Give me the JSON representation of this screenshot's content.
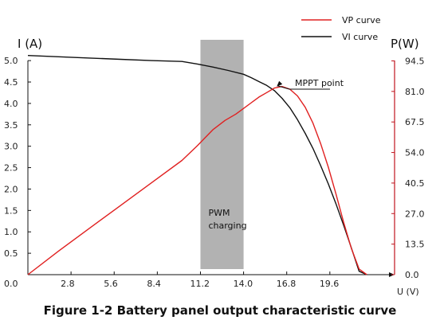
{
  "caption": "Figure 1-2 Battery panel output characteristic curve",
  "chart_data": {
    "type": "line",
    "xlabel": "U(V)",
    "ylabel_left": "I(A)",
    "ylabel_right": "P(W)",
    "xlim": [
      0,
      23.8
    ],
    "ylim_left": [
      0,
      5.3
    ],
    "ylim_right": [
      0,
      100.3
    ],
    "x_ticks": [
      {
        "value": 0,
        "label": "0.0"
      },
      {
        "value": 2.8,
        "label": "2.8"
      },
      {
        "value": 5.6,
        "label": "5.6"
      },
      {
        "value": 8.4,
        "label": "8.4"
      },
      {
        "value": 11.2,
        "label": "11.2"
      },
      {
        "value": 14.0,
        "label": "14.0"
      },
      {
        "value": 16.8,
        "label": "16.8"
      },
      {
        "value": 19.6,
        "label": "19.6"
      }
    ],
    "y_left_ticks": [
      {
        "value": 0.5,
        "label": "0.5"
      },
      {
        "value": 1.0,
        "label": "1.0"
      },
      {
        "value": 1.5,
        "label": "1.5"
      },
      {
        "value": 2.0,
        "label": "2.0"
      },
      {
        "value": 2.5,
        "label": "2.5"
      },
      {
        "value": 3.0,
        "label": "3.0"
      },
      {
        "value": 3.5,
        "label": "3.5"
      },
      {
        "value": 4.0,
        "label": "4.0"
      },
      {
        "value": 4.5,
        "label": "4.5"
      },
      {
        "value": 5.0,
        "label": "5.0"
      }
    ],
    "y_right_ticks": [
      {
        "value": 0.0,
        "label": "0.0"
      },
      {
        "value": 13.5,
        "label": "13.5"
      },
      {
        "value": 27.0,
        "label": "27.0"
      },
      {
        "value": 40.5,
        "label": "40.5"
      },
      {
        "value": 54.0,
        "label": "54.0"
      },
      {
        "value": 67.5,
        "label": "67.5"
      },
      {
        "value": 81.0,
        "label": "81.0"
      },
      {
        "value": 94.5,
        "label": "94.5"
      }
    ],
    "legend": [
      {
        "name": "VP curve",
        "color": "#e02020"
      },
      {
        "name": "VI curve",
        "color": "#111111"
      }
    ],
    "series": [
      {
        "name": "VI curve",
        "axis": "left",
        "color": "#111111",
        "x": [
          0.0,
          2.0,
          4.0,
          6.0,
          8.0,
          10.0,
          11.0,
          12.0,
          13.0,
          14.0,
          14.5,
          15.0,
          15.5,
          16.0,
          16.5,
          17.0,
          17.5,
          18.0,
          18.5,
          19.0,
          19.5,
          20.0,
          20.5,
          21.0,
          21.5,
          22.0
        ],
        "values": [
          5.12,
          5.09,
          5.06,
          5.03,
          5.0,
          4.98,
          4.92,
          4.85,
          4.77,
          4.68,
          4.6,
          4.51,
          4.42,
          4.3,
          4.12,
          3.9,
          3.62,
          3.3,
          2.95,
          2.55,
          2.12,
          1.65,
          1.15,
          0.62,
          0.08,
          0.0
        ]
      },
      {
        "name": "VP curve",
        "axis": "right",
        "color": "#e02020",
        "x": [
          0.0,
          2.0,
          4.0,
          6.0,
          8.0,
          10.0,
          11.0,
          12.0,
          12.8,
          13.5,
          14.0,
          14.5,
          15.0,
          15.5,
          16.0,
          16.5,
          17.0,
          17.5,
          18.0,
          18.5,
          19.0,
          19.5,
          20.0,
          20.5,
          21.0,
          21.5,
          22.0
        ],
        "values": [
          0.0,
          10.5,
          20.5,
          30.5,
          40.5,
          50.5,
          57.0,
          64.0,
          68.2,
          71.0,
          73.5,
          76.0,
          78.5,
          80.5,
          82.5,
          83.2,
          82.0,
          79.0,
          74.0,
          67.0,
          58.0,
          47.5,
          35.5,
          23.0,
          11.5,
          2.5,
          0.0
        ]
      }
    ],
    "annotations": [
      {
        "text": "MPPT point",
        "x": 16.1,
        "y_right": 82.8
      },
      {
        "text": "PWM charging",
        "x_range": [
          11.2,
          14.0
        ]
      }
    ],
    "grid": false,
    "legend_position": "top-right"
  }
}
